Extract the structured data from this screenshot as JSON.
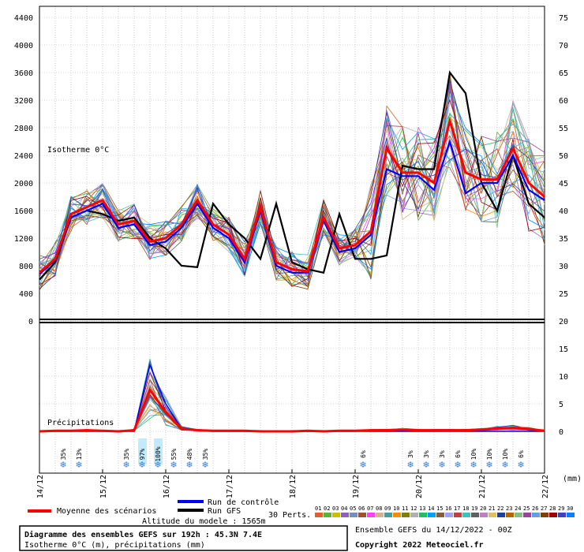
{
  "header": {
    "isotherme_label": "Isotherme 0°C",
    "precip_label": "Précipitations",
    "unit_mm": "(mm)"
  },
  "chart_data": [
    {
      "type": "line",
      "panel": "isotherm",
      "y_left_ticks": [
        0,
        400,
        800,
        1200,
        1600,
        2000,
        2400,
        2800,
        3200,
        3600,
        4000,
        4400
      ],
      "y_right_ticks": [
        20,
        25,
        30,
        35,
        40,
        45,
        50,
        55,
        60,
        65,
        70,
        75
      ],
      "ylim": [
        0,
        4400
      ],
      "x_tick_labels": [
        "14/12",
        "15/12",
        "16/12",
        "17/12",
        "18/12",
        "19/12",
        "20/12",
        "21/12",
        "22/12"
      ],
      "x_step_hours": 6,
      "grid": true,
      "series": [
        {
          "name": "Moyenne des scénarios",
          "color": "#ff0000",
          "values": [
            700,
            900,
            1550,
            1650,
            1750,
            1400,
            1450,
            1150,
            1200,
            1400,
            1750,
            1400,
            1250,
            900,
            1650,
            850,
            750,
            720,
            1500,
            1050,
            1100,
            1300,
            2500,
            2150,
            2150,
            2000,
            2900,
            2150,
            2050,
            2050,
            2500,
            2000,
            1800
          ]
        },
        {
          "name": "Run de contrôle",
          "color": "#0000ff",
          "values": [
            680,
            880,
            1500,
            1600,
            1700,
            1350,
            1400,
            1100,
            1150,
            1350,
            1700,
            1350,
            1200,
            850,
            1600,
            800,
            700,
            700,
            1450,
            1000,
            1050,
            1250,
            2200,
            2100,
            2100,
            1900,
            2600,
            1850,
            2000,
            2000,
            2400,
            1900,
            1750
          ]
        },
        {
          "name": "Run GFS",
          "color": "#000000",
          "values": [
            600,
            850,
            1500,
            1600,
            1550,
            1450,
            1500,
            1200,
            1050,
            800,
            780,
            1700,
            1400,
            1200,
            900,
            1700,
            850,
            750,
            700,
            1550,
            900,
            900,
            950,
            2250,
            2200,
            2200,
            3600,
            3300,
            2000,
            1600,
            2400,
            1700,
            1500
          ]
        }
      ]
    },
    {
      "type": "line",
      "panel": "precipitation",
      "y_right_ticks": [
        0,
        5,
        10,
        15,
        20
      ],
      "ylim": [
        0,
        20
      ],
      "series": [
        {
          "name": "Moyenne des scénarios",
          "color": "#ff0000",
          "values": [
            0,
            0.1,
            0.1,
            0.2,
            0.1,
            0,
            0.2,
            7.5,
            3.5,
            0.5,
            0.2,
            0.1,
            0.1,
            0.1,
            0,
            0,
            0,
            0.1,
            0,
            0.1,
            0.1,
            0.2,
            0.2,
            0.3,
            0.2,
            0.2,
            0.2,
            0.2,
            0.3,
            0.5,
            0.6,
            0.4,
            0.1
          ]
        },
        {
          "name": "Run de contrôle",
          "color": "#0000ff",
          "values": [
            0,
            0,
            0,
            0,
            0,
            0,
            0,
            12,
            5,
            0.5,
            0.1,
            0,
            0,
            0,
            0,
            0,
            0,
            0,
            0,
            0,
            0,
            0,
            0,
            0,
            0,
            0,
            0,
            0,
            0,
            0,
            0,
            0,
            0
          ]
        }
      ]
    }
  ],
  "snow_probabilities": [
    {
      "slot": 2,
      "text": "35%"
    },
    {
      "slot": 3,
      "text": "13%"
    },
    {
      "slot": 6,
      "text": "35%"
    },
    {
      "slot": 7,
      "text": "97%"
    },
    {
      "slot": 8,
      "text": "100%"
    },
    {
      "slot": 9,
      "text": "55%"
    },
    {
      "slot": 10,
      "text": "48%"
    },
    {
      "slot": 11,
      "text": "35%"
    },
    {
      "slot": 21,
      "text": "6%"
    },
    {
      "slot": 24,
      "text": "3%"
    },
    {
      "slot": 25,
      "text": "3%"
    },
    {
      "slot": 26,
      "text": "3%"
    },
    {
      "slot": 27,
      "text": "6%"
    },
    {
      "slot": 28,
      "text": "10%"
    },
    {
      "slot": 29,
      "text": "10%"
    },
    {
      "slot": 30,
      "text": "10%"
    },
    {
      "slot": 31,
      "text": "6%"
    }
  ],
  "legend": {
    "mean_label": "Moyenne des scénarios",
    "mean_color": "#ff0000",
    "control_label": "Run de contrôle",
    "control_color": "#0000ff",
    "gfs_label": "Run GFS",
    "gfs_color": "#000000",
    "perts_label": "30 Perts.",
    "altitude_label": "Altitude du modele : 1565m",
    "member_labels": [
      "01",
      "02",
      "03",
      "04",
      "05",
      "06",
      "07",
      "08",
      "09",
      "10",
      "11",
      "12",
      "13",
      "14",
      "15",
      "16",
      "17",
      "18",
      "19",
      "20",
      "21",
      "22",
      "23",
      "24",
      "25",
      "26",
      "27",
      "28",
      "29",
      "30"
    ],
    "member_colors": [
      "#e06030",
      "#60b040",
      "#c8c000",
      "#9060c0",
      "#7090c0",
      "#a0522d",
      "#ff40ff",
      "#d2b48c",
      "#40a0a0",
      "#ff8c00",
      "#808000",
      "#b0b0b0",
      "#20c060",
      "#00a0ff",
      "#806040",
      "#a0a0ff",
      "#c04040",
      "#40c0c0",
      "#606060",
      "#c080c0",
      "#e0c060",
      "#2040a0",
      "#c06000",
      "#80c080",
      "#a040a0",
      "#60a0e0",
      "#804000",
      "#a00000",
      "#4040c0",
      "#0080ff"
    ]
  },
  "footer": {
    "title": "Diagramme des ensembles GEFS sur 192h : 45.3N 7.4E",
    "subtitle": "Isotherme 0°C (m), précipitations (mm)",
    "run_info": "Ensemble GEFS du 14/12/2022 - 00Z",
    "copyright": "Copyright 2022 Meteociel.fr"
  }
}
